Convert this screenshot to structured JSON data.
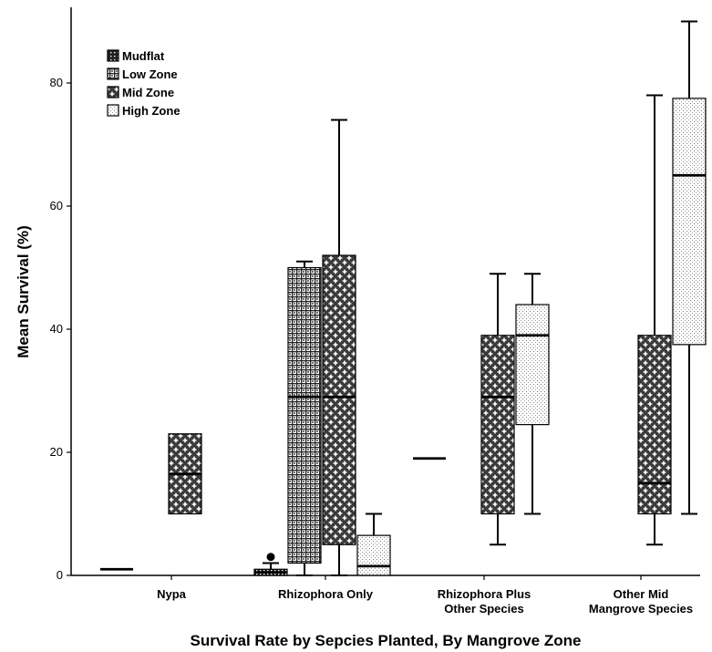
{
  "chart_data": {
    "type": "boxplot",
    "title": "",
    "xlabel": "Survival Rate by Sepcies Planted, By Mangrove Zone",
    "ylabel": "Mean Survival (%)",
    "ylim": [
      0,
      92
    ],
    "yticks": [
      0,
      20,
      40,
      60,
      80
    ],
    "grid": false,
    "legend_position": "top-left",
    "categories": [
      {
        "lines": [
          "Nypa"
        ]
      },
      {
        "lines": [
          "Rhizophora Only"
        ]
      },
      {
        "lines": [
          "Rhizophora Plus",
          "Other Species"
        ]
      },
      {
        "lines": [
          "Other Mid",
          "Mangrove Species"
        ]
      }
    ],
    "series": [
      {
        "name": "Mudflat",
        "pattern": "dense-dots",
        "color": "#000000"
      },
      {
        "name": "Low Zone",
        "pattern": "grid-dots",
        "color": "#000000"
      },
      {
        "name": "Mid Zone",
        "pattern": "crosses",
        "color": "#000000"
      },
      {
        "name": "High Zone",
        "pattern": "fine-dots",
        "color": "#000000"
      }
    ],
    "boxes": [
      {
        "category": 0,
        "series": 0,
        "min": 1,
        "q1": 1,
        "median": 1,
        "q3": 1,
        "max": 1,
        "outliers": []
      },
      {
        "category": 0,
        "series": 2,
        "min": 10,
        "q1": 10,
        "median": 16.5,
        "q3": 23,
        "max": 23,
        "outliers": []
      },
      {
        "category": 1,
        "series": 0,
        "min": 0,
        "q1": 0,
        "median": 0.5,
        "q3": 1,
        "max": 2,
        "outliers": [
          3
        ]
      },
      {
        "category": 1,
        "series": 1,
        "min": 0,
        "q1": 2,
        "median": 29,
        "q3": 50,
        "max": 51,
        "outliers": []
      },
      {
        "category": 1,
        "series": 2,
        "min": 0,
        "q1": 5,
        "median": 29,
        "q3": 52,
        "max": 74,
        "outliers": []
      },
      {
        "category": 1,
        "series": 3,
        "min": 0,
        "q1": 0,
        "median": 1.5,
        "q3": 6.5,
        "max": 10,
        "outliers": []
      },
      {
        "category": 2,
        "series": 0,
        "min": 19,
        "q1": 19,
        "median": 19,
        "q3": 19,
        "max": 19,
        "outliers": []
      },
      {
        "category": 2,
        "series": 2,
        "min": 5,
        "q1": 10,
        "median": 29,
        "q3": 39,
        "max": 49,
        "outliers": []
      },
      {
        "category": 2,
        "series": 3,
        "min": 10,
        "q1": 24.5,
        "median": 39,
        "q3": 44,
        "max": 49,
        "outliers": []
      },
      {
        "category": 3,
        "series": 2,
        "min": 5,
        "q1": 10,
        "median": 15,
        "q3": 39,
        "max": 78,
        "outliers": []
      },
      {
        "category": 3,
        "series": 3,
        "min": 10,
        "q1": 37.5,
        "median": 65,
        "q3": 77.5,
        "max": 90,
        "outliers": []
      }
    ]
  }
}
